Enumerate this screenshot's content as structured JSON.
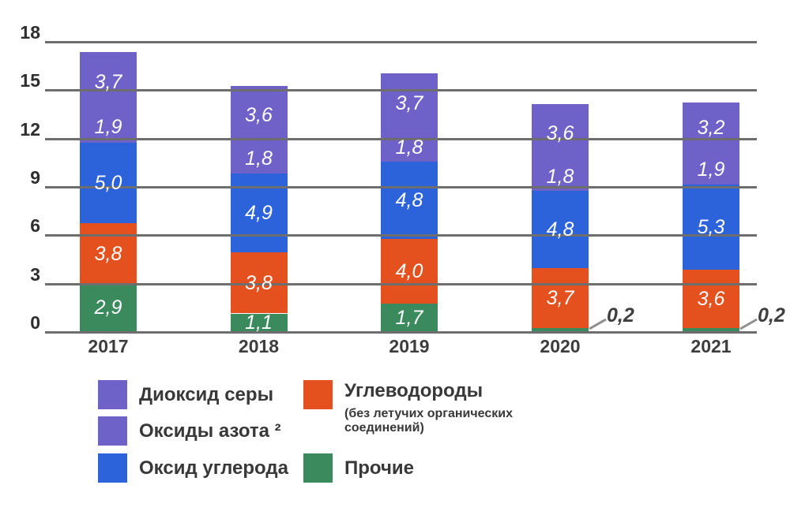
{
  "chart_data": {
    "type": "stacked-bar",
    "categories": [
      "2017",
      "2018",
      "2019",
      "2020",
      "2021"
    ],
    "series": [
      {
        "name": "Прочие",
        "color": "#3A8A5D",
        "values": [
          2.9,
          1.1,
          1.7,
          0.2,
          0.2
        ],
        "labels": [
          "2,9",
          "1,1",
          "1,7",
          null,
          null
        ],
        "callouts": [
          null,
          null,
          null,
          "0,2",
          "0,2"
        ]
      },
      {
        "name": "Углеводороды (без летучих органических соединений)",
        "color": "#E4511E",
        "values": [
          3.8,
          3.8,
          4.0,
          3.7,
          3.6
        ],
        "labels": [
          "3,8",
          "3,8",
          "4,0",
          "3,7",
          "3,6"
        ],
        "callouts": [
          null,
          null,
          null,
          null,
          null
        ]
      },
      {
        "name": "Оксид углерода",
        "color": "#2C63DA",
        "values": [
          5.0,
          4.9,
          4.8,
          4.8,
          5.3
        ],
        "labels": [
          "5,0",
          "4,9",
          "4,8",
          "4,8",
          "5,3"
        ],
        "callouts": [
          null,
          null,
          null,
          null,
          null
        ]
      },
      {
        "name": "Оксиды азота ²",
        "color": "#6E62C9",
        "values": [
          1.9,
          1.8,
          1.8,
          1.8,
          1.9
        ],
        "labels": [
          "1,9",
          "1,8",
          "1,8",
          "1,8",
          "1,9"
        ],
        "callouts": [
          null,
          null,
          null,
          null,
          null
        ]
      },
      {
        "name": "Диоксид серы",
        "color": "#6E62C9",
        "values": [
          3.7,
          3.6,
          3.7,
          3.6,
          3.2
        ],
        "labels": [
          "3,7",
          "3,6",
          "3,7",
          "3,6",
          "3,2"
        ],
        "callouts": [
          null,
          null,
          null,
          null,
          null
        ]
      }
    ],
    "stack_order": "bottom-to-top as listed",
    "ylim": [
      0,
      18
    ],
    "yticks": [
      "0",
      "3",
      "6",
      "9",
      "12",
      "15",
      "18"
    ],
    "ytick_values": [
      0,
      3,
      6,
      9,
      12,
      15,
      18
    ],
    "grid": "horizontal",
    "decimal_separator": ",",
    "legend_position": "bottom",
    "value_label_style": "white italic inside segments",
    "grid_color": "#6E6E6E",
    "background": "#FFFFFF"
  },
  "legend": {
    "columns": [
      {
        "items": [
          {
            "label": "Диоксид серы",
            "color": "#6E62C9"
          },
          {
            "label": "Оксиды азота ²",
            "color": "#6E62C9"
          },
          {
            "label": "Оксид углерода",
            "color": "#2C63DA"
          }
        ]
      },
      {
        "items": [
          {
            "label": "Углеводороды",
            "sublabel": "(без летучих органических соединений)",
            "color": "#E4511E"
          },
          {
            "label": "Прочие",
            "color": "#3A8A5D"
          }
        ]
      }
    ]
  }
}
